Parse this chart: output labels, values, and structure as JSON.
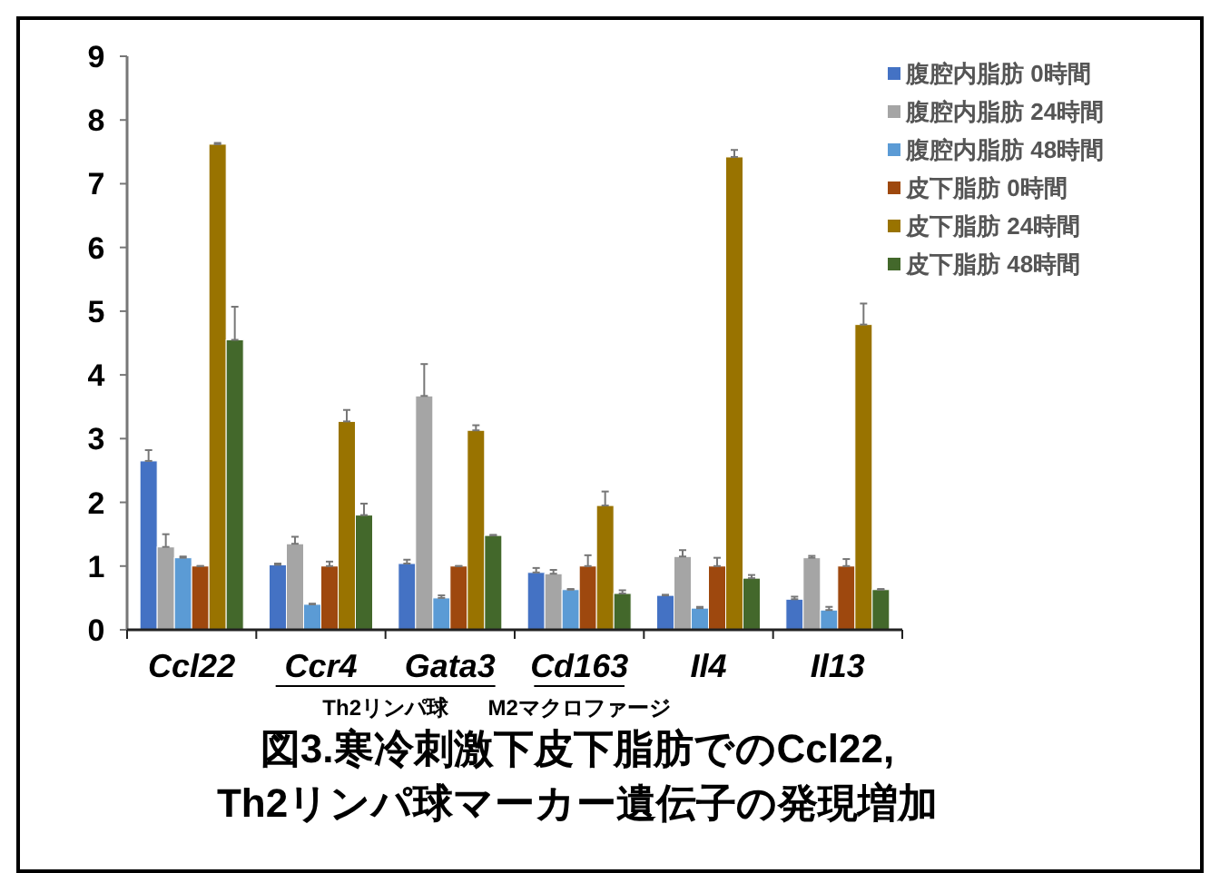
{
  "chart_data": {
    "type": "bar",
    "title": "図3.寒冷刺激下皮下脂肪でのCcl22,\nTh2リンパ球マーカー遺伝子の発現増加",
    "categories": [
      "Ccl22",
      "Ccr4",
      "Gata3",
      "Cd163",
      "Il4",
      "Il13"
    ],
    "annotations": [
      "Th2リンパ球",
      "M2マクロファージ"
    ],
    "ylim": [
      0,
      9
    ],
    "yticks": [
      0,
      1,
      2,
      3,
      4,
      5,
      6,
      7,
      8,
      9
    ],
    "grid": false,
    "legend": "top right",
    "series": [
      {
        "name": "腹腔内脂肪 0時間",
        "color": "#4472c4",
        "values": [
          2.65,
          1.02,
          1.04,
          0.9,
          0.54,
          0.48
        ],
        "errors": [
          [
            2.65,
            2.82
          ],
          [
            1.02,
            1.04
          ],
          [
            1.04,
            1.1
          ],
          [
            0.9,
            0.97
          ],
          [
            0.54,
            0.55
          ],
          [
            0.48,
            0.52
          ]
        ]
      },
      {
        "name": "腹腔内脂肪 24時間",
        "color": "#a5a5a5",
        "values": [
          1.3,
          1.35,
          3.67,
          0.88,
          1.15,
          1.13
        ],
        "errors": [
          [
            1.3,
            1.5
          ],
          [
            1.35,
            1.46
          ],
          [
            3.67,
            4.17
          ],
          [
            0.88,
            0.94
          ],
          [
            1.15,
            1.25
          ],
          [
            1.13,
            1.16
          ]
        ]
      },
      {
        "name": "腹腔内脂肪 48時間",
        "color": "#5b9bd5",
        "values": [
          1.13,
          0.4,
          0.5,
          0.63,
          0.34,
          0.31
        ],
        "errors": [
          [
            1.13,
            1.15
          ],
          [
            0.4,
            0.41
          ],
          [
            0.5,
            0.54
          ],
          [
            0.63,
            0.64
          ],
          [
            0.34,
            0.36
          ],
          [
            0.31,
            0.36
          ]
        ]
      },
      {
        "name": "皮下脂肪 0時間",
        "color": "#9e480e",
        "values": [
          1.0,
          1.0,
          1.0,
          1.0,
          1.0,
          1.0
        ],
        "errors": [
          [
            1.0,
            1.0
          ],
          [
            1.0,
            1.07
          ],
          [
            1.0,
            1.0
          ],
          [
            1.0,
            1.17
          ],
          [
            1.0,
            1.13
          ],
          [
            1.0,
            1.11
          ]
        ]
      },
      {
        "name": "皮下脂肪 24時間",
        "color": "#997300",
        "values": [
          7.62,
          3.27,
          3.13,
          1.95,
          7.42,
          4.79
        ],
        "errors": [
          [
            7.62,
            7.64
          ],
          [
            3.27,
            3.45
          ],
          [
            3.13,
            3.21
          ],
          [
            1.95,
            2.17
          ],
          [
            7.42,
            7.53
          ],
          [
            4.79,
            5.12
          ]
        ]
      },
      {
        "name": "皮下脂肪 48時間",
        "color": "#43682b",
        "values": [
          4.55,
          1.8,
          1.48,
          0.57,
          0.81,
          0.63
        ],
        "errors": [
          [
            4.55,
            5.07
          ],
          [
            1.8,
            1.98
          ],
          [
            1.48,
            1.49
          ],
          [
            0.57,
            0.62
          ],
          [
            0.81,
            0.86
          ],
          [
            0.63,
            0.64
          ]
        ]
      }
    ]
  }
}
